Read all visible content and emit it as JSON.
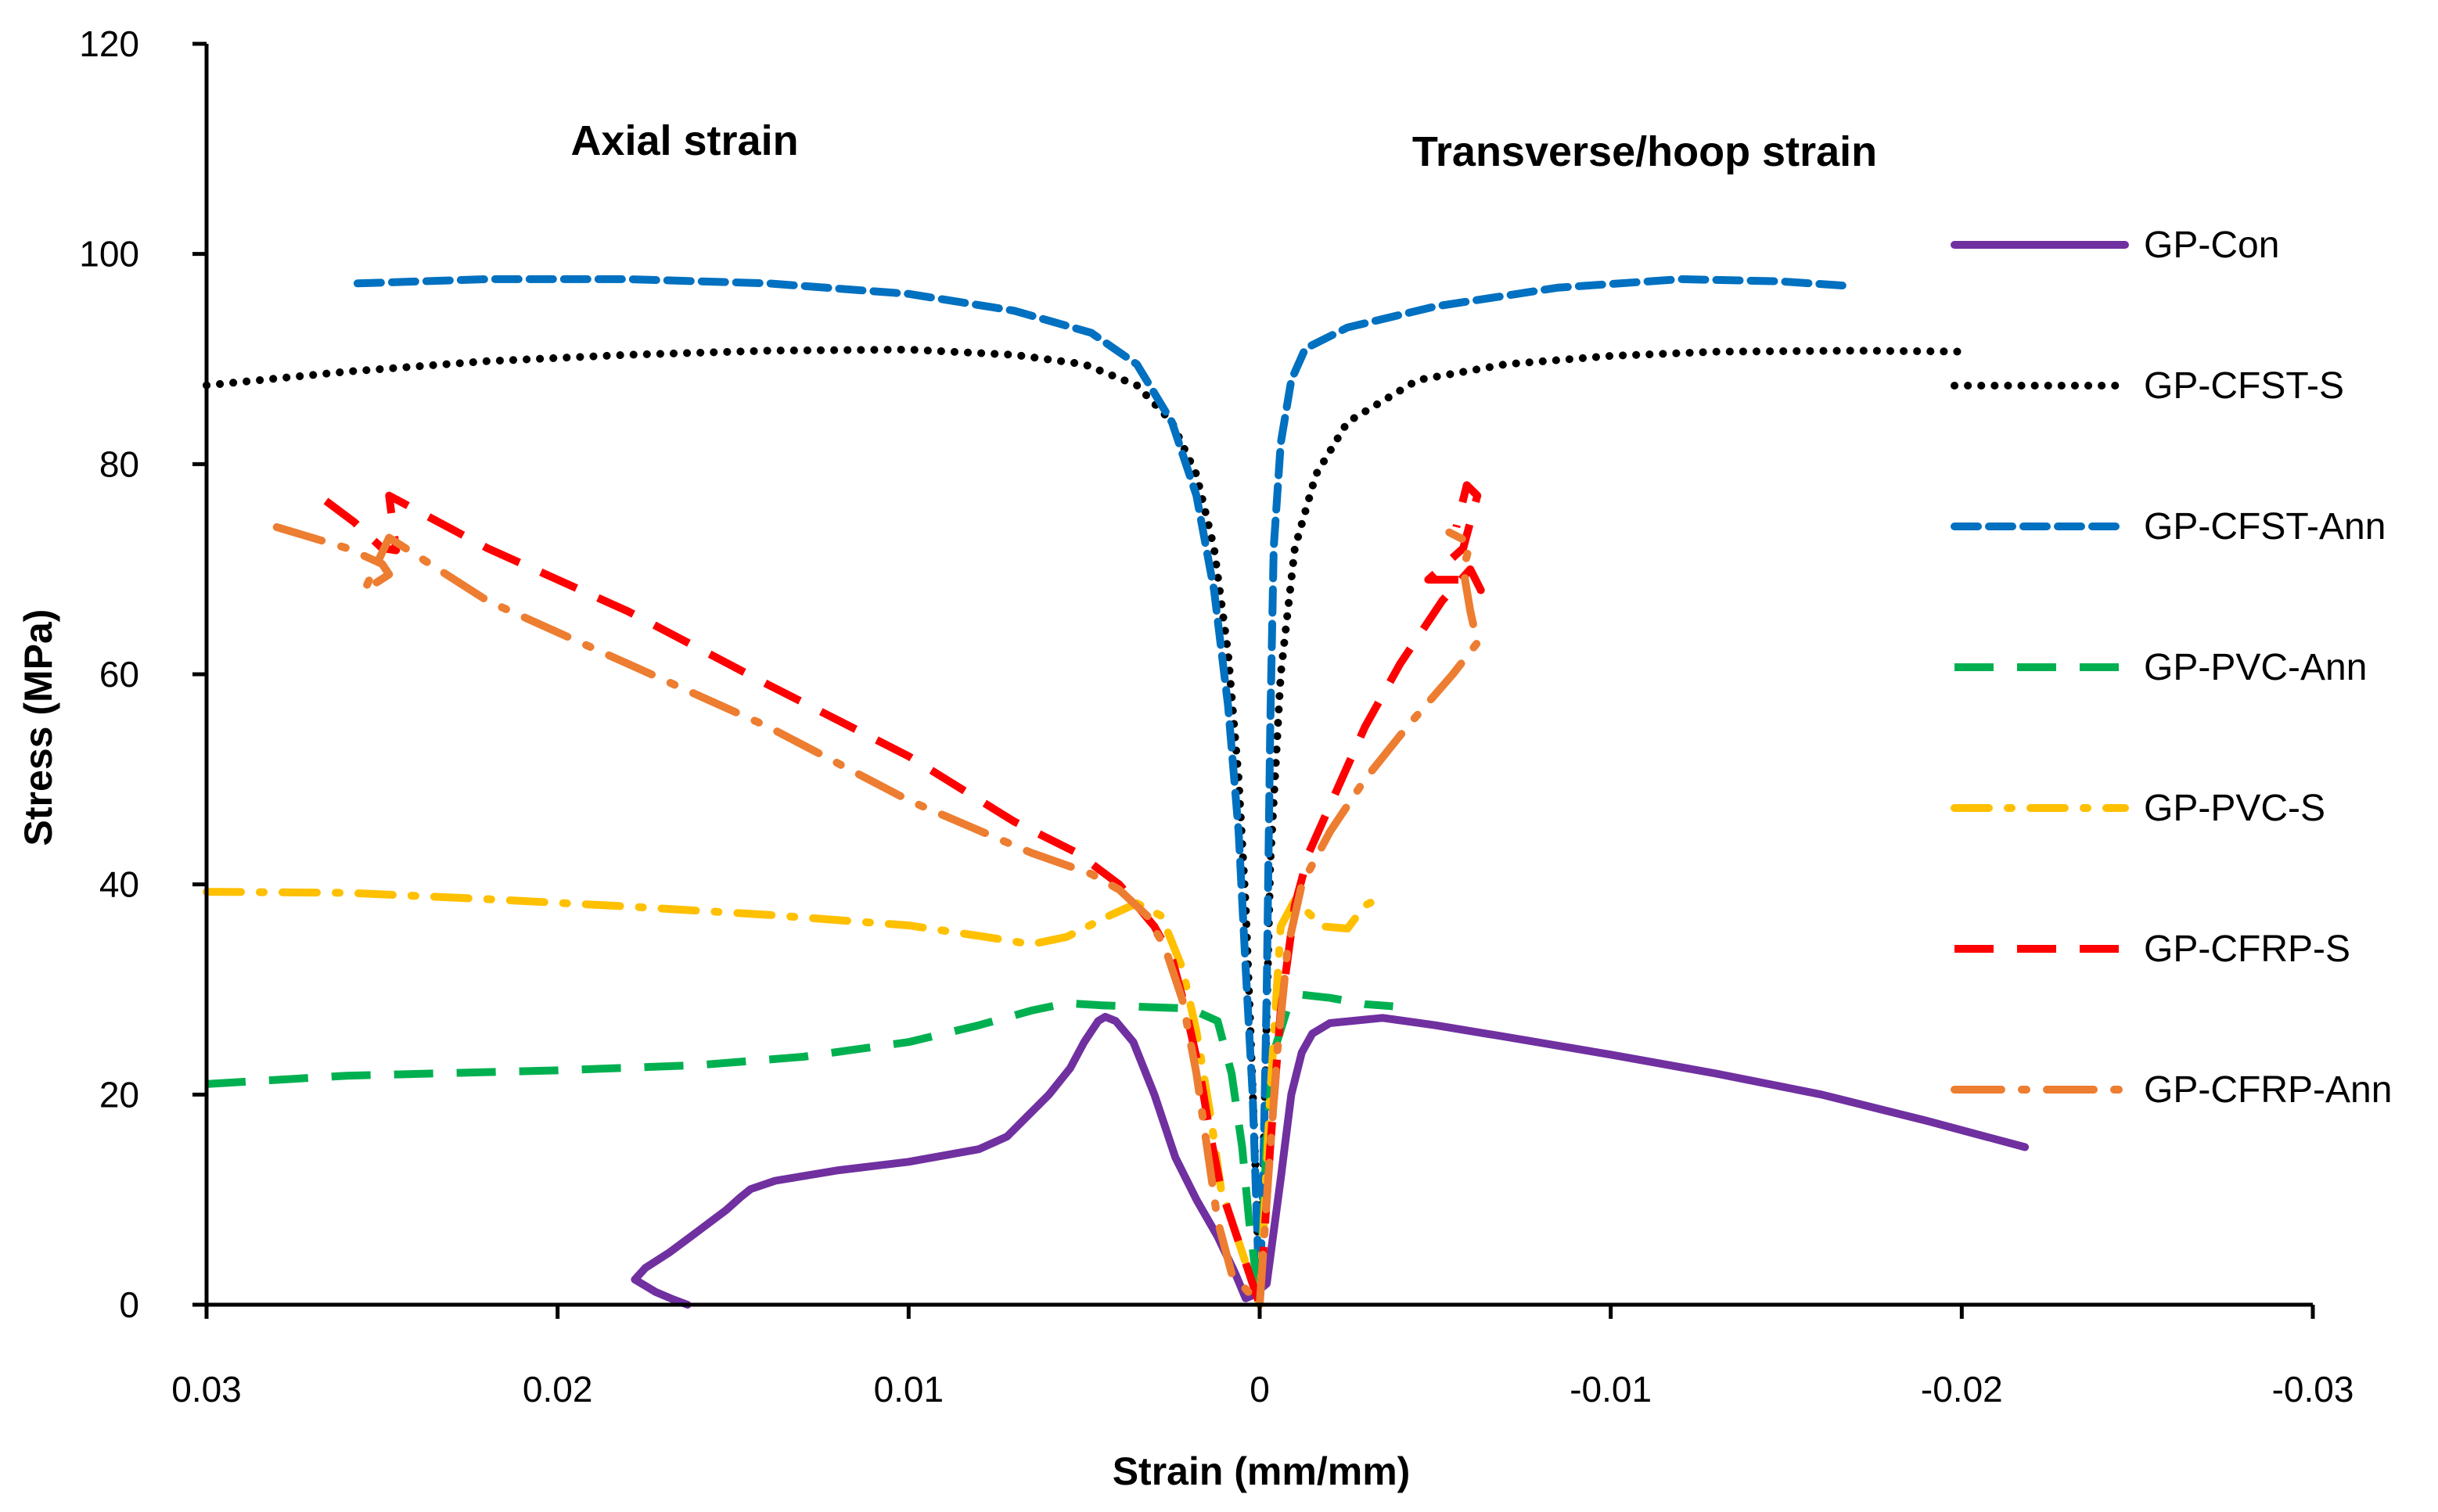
{
  "chart_data": {
    "type": "line",
    "title": "",
    "xlabel": "Strain (mm/mm)",
    "ylabel": "Stress (MPa)",
    "xlim": [
      0.03,
      -0.03
    ],
    "ylim": [
      0,
      120
    ],
    "x_ticks": [
      "0.03",
      "0.02",
      "0.01",
      "0",
      "-0.01",
      "-0.02",
      "-0.03"
    ],
    "y_ticks": [
      "0",
      "20",
      "40",
      "60",
      "80",
      "100",
      "120"
    ],
    "x_tick_values": [
      0.03,
      0.02,
      0.01,
      0,
      -0.01,
      -0.02,
      -0.03
    ],
    "y_tick_values": [
      0,
      20,
      40,
      60,
      80,
      100,
      120
    ],
    "grid": false,
    "legend_position": "right",
    "annotations": [
      {
        "text": "Axial strain",
        "x": 0.017,
        "y": 110
      },
      {
        "text": "Transverse/hoop strain",
        "x": -0.0101,
        "y": 109
      }
    ],
    "series": [
      {
        "name": "GP-Con",
        "color": "#7030A0",
        "dash": "solid",
        "points": [
          [
            0.0163,
            0
          ],
          [
            0.0167,
            0.5
          ],
          [
            0.0172,
            1.2
          ],
          [
            0.0178,
            2.4
          ],
          [
            0.0175,
            3.5
          ],
          [
            0.0168,
            5
          ],
          [
            0.0158,
            7.5
          ],
          [
            0.0152,
            9
          ],
          [
            0.0148,
            10.2
          ],
          [
            0.0145,
            11
          ],
          [
            0.0138,
            11.8
          ],
          [
            0.012,
            12.8
          ],
          [
            0.01,
            13.6
          ],
          [
            0.008,
            14.8
          ],
          [
            0.0072,
            16
          ],
          [
            0.0066,
            18
          ],
          [
            0.006,
            20
          ],
          [
            0.0054,
            22.5
          ],
          [
            0.005,
            25
          ],
          [
            0.0046,
            27
          ],
          [
            0.0044,
            27.4
          ],
          [
            0.0041,
            27
          ],
          [
            0.0036,
            25
          ],
          [
            0.003,
            20
          ],
          [
            0.0024,
            14
          ],
          [
            0.0018,
            10
          ],
          [
            0.0012,
            6.5
          ],
          [
            0.0007,
            3
          ],
          [
            0.0004,
            0.6
          ],
          [
            0.0002,
            0.9
          ],
          [
            -0.0002,
            2
          ],
          [
            -0.0006,
            12
          ],
          [
            -0.0009,
            20
          ],
          [
            -0.0012,
            24
          ],
          [
            -0.0015,
            25.8
          ],
          [
            -0.002,
            26.8
          ],
          [
            -0.0035,
            27.3
          ],
          [
            -0.005,
            26.6
          ],
          [
            -0.007,
            25.5
          ],
          [
            -0.01,
            23.8
          ],
          [
            -0.013,
            22
          ],
          [
            -0.016,
            20
          ],
          [
            -0.019,
            17.5
          ],
          [
            -0.0218,
            15
          ]
        ]
      },
      {
        "name": "GP-CFST-S",
        "color": "#000000",
        "dash": "dotted",
        "points": [
          [
            0.03,
            87.5
          ],
          [
            0.026,
            88.8
          ],
          [
            0.022,
            89.8
          ],
          [
            0.018,
            90.4
          ],
          [
            0.014,
            90.8
          ],
          [
            0.01,
            90.9
          ],
          [
            0.007,
            90.4
          ],
          [
            0.005,
            89.5
          ],
          [
            0.0035,
            87.5
          ],
          [
            0.0025,
            84
          ],
          [
            0.0018,
            79
          ],
          [
            0.0013,
            72
          ],
          [
            0.0009,
            62
          ],
          [
            0.0006,
            50
          ],
          [
            0.0004,
            38
          ],
          [
            0.00025,
            25
          ],
          [
            0.00015,
            16
          ],
          [
            0,
            0
          ],
          [
            -0.00015,
            20
          ],
          [
            -0.0003,
            42
          ],
          [
            -0.0006,
            60
          ],
          [
            -0.001,
            72
          ],
          [
            -0.0016,
            79
          ],
          [
            -0.0025,
            84
          ],
          [
            -0.0045,
            88
          ],
          [
            -0.007,
            89.5
          ],
          [
            -0.01,
            90.3
          ],
          [
            -0.013,
            90.7
          ],
          [
            -0.017,
            90.8
          ],
          [
            -0.0202,
            90.7
          ]
        ]
      },
      {
        "name": "GP-CFST-Ann",
        "color": "#0070C0",
        "dash": "dashed",
        "points": [
          [
            0.0257,
            97.2
          ],
          [
            0.022,
            97.6
          ],
          [
            0.018,
            97.6
          ],
          [
            0.014,
            97.2
          ],
          [
            0.01,
            96.2
          ],
          [
            0.007,
            94.6
          ],
          [
            0.0048,
            92.5
          ],
          [
            0.0035,
            89.5
          ],
          [
            0.0025,
            84
          ],
          [
            0.0018,
            77
          ],
          [
            0.0013,
            68
          ],
          [
            0.0009,
            57
          ],
          [
            0.0006,
            45
          ],
          [
            0.0004,
            32
          ],
          [
            0.0002,
            20
          ],
          [
            0,
            0
          ],
          [
            -0.0001,
            12
          ],
          [
            -0.0002,
            30
          ],
          [
            -0.0003,
            55
          ],
          [
            -0.0004,
            72
          ],
          [
            -0.0006,
            82
          ],
          [
            -0.0009,
            88
          ],
          [
            -0.0013,
            91
          ],
          [
            -0.0025,
            93
          ],
          [
            -0.005,
            95
          ],
          [
            -0.0085,
            96.8
          ],
          [
            -0.012,
            97.6
          ],
          [
            -0.0148,
            97.4
          ],
          [
            -0.0166,
            97
          ]
        ]
      },
      {
        "name": "GP-PVC-Ann",
        "color": "#00B050",
        "dash": "longdash",
        "points": [
          [
            0.03,
            21
          ],
          [
            0.026,
            21.8
          ],
          [
            0.02,
            22.3
          ],
          [
            0.016,
            22.8
          ],
          [
            0.013,
            23.6
          ],
          [
            0.01,
            25
          ],
          [
            0.008,
            26.6
          ],
          [
            0.0065,
            28
          ],
          [
            0.0055,
            28.7
          ],
          [
            0.0045,
            28.5
          ],
          [
            0.003,
            28.3
          ],
          [
            0.002,
            28.2
          ],
          [
            0.0012,
            27
          ],
          [
            0.0008,
            22
          ],
          [
            0.0005,
            15
          ],
          [
            0.0003,
            8
          ],
          [
            0,
            0
          ],
          [
            -0.0002,
            16
          ],
          [
            -0.0004,
            24
          ],
          [
            -0.0008,
            28.3
          ],
          [
            -0.0012,
            29.5
          ],
          [
            -0.002,
            29.2
          ],
          [
            -0.003,
            28.6
          ],
          [
            -0.0038,
            28.4
          ]
        ]
      },
      {
        "name": "GP-PVC-S",
        "color": "#FFC000",
        "dash": "dashdot",
        "points": [
          [
            0.03,
            39.3
          ],
          [
            0.026,
            39.2
          ],
          [
            0.022,
            38.6
          ],
          [
            0.018,
            37.9
          ],
          [
            0.014,
            37.1
          ],
          [
            0.01,
            36.1
          ],
          [
            0.0078,
            35
          ],
          [
            0.0065,
            34.3
          ],
          [
            0.0055,
            35
          ],
          [
            0.0043,
            37
          ],
          [
            0.0035,
            38.2
          ],
          [
            0.0028,
            37
          ],
          [
            0.0022,
            32
          ],
          [
            0.0018,
            26
          ],
          [
            0.0014,
            18
          ],
          [
            0.0011,
            11
          ],
          [
            0,
            0
          ],
          [
            -0.0003,
            20
          ],
          [
            -0.0006,
            36
          ],
          [
            -0.001,
            38.5
          ],
          [
            -0.0018,
            36
          ],
          [
            -0.0025,
            35.8
          ],
          [
            -0.003,
            38
          ],
          [
            -0.0036,
            39
          ]
        ]
      },
      {
        "name": "GP-CFRP-S",
        "color": "#FF0000",
        "dash": "longdash",
        "points": [
          [
            0.0266,
            76.5
          ],
          [
            0.0258,
            74.5
          ],
          [
            0.025,
            72
          ],
          [
            0.0246,
            71.8
          ],
          [
            0.0248,
            77
          ],
          [
            0.022,
            72
          ],
          [
            0.018,
            66
          ],
          [
            0.014,
            59
          ],
          [
            0.01,
            52.2
          ],
          [
            0.007,
            46
          ],
          [
            0.0052,
            43
          ],
          [
            0.004,
            40
          ],
          [
            0.003,
            36
          ],
          [
            0.0025,
            33
          ],
          [
            0.0021,
            28
          ],
          [
            0.0017,
            22
          ],
          [
            0.0014,
            16
          ],
          [
            0.0011,
            11
          ],
          [
            0,
            0
          ],
          [
            -0.0003,
            15
          ],
          [
            -0.0006,
            28
          ],
          [
            -0.001,
            38
          ],
          [
            -0.0014,
            43
          ],
          [
            -0.0022,
            49
          ],
          [
            -0.003,
            55
          ],
          [
            -0.004,
            61
          ],
          [
            -0.0052,
            67
          ],
          [
            -0.006,
            70
          ],
          [
            -0.0063,
            68
          ],
          [
            -0.0058,
            69
          ],
          [
            -0.0048,
            69
          ],
          [
            -0.0058,
            72
          ],
          [
            -0.0062,
            77
          ],
          [
            -0.0059,
            78
          ],
          [
            -0.0056,
            74
          ]
        ]
      },
      {
        "name": "GP-CFRP-Ann",
        "color": "#ED7D31",
        "dash": "dashdotdot",
        "points": [
          [
            0.028,
            74
          ],
          [
            0.026,
            72
          ],
          [
            0.025,
            70.5
          ],
          [
            0.0248,
            69.5
          ],
          [
            0.0255,
            68
          ],
          [
            0.0248,
            73
          ],
          [
            0.022,
            67
          ],
          [
            0.018,
            61
          ],
          [
            0.014,
            55
          ],
          [
            0.01,
            48
          ],
          [
            0.0065,
            43
          ],
          [
            0.0048,
            41
          ],
          [
            0.004,
            39.5
          ],
          [
            0.0032,
            37
          ],
          [
            0.0027,
            34
          ],
          [
            0.0022,
            29
          ],
          [
            0.0018,
            22
          ],
          [
            0.0015,
            15
          ],
          [
            0.0012,
            8
          ],
          [
            0.0008,
            3
          ],
          [
            0,
            0
          ],
          [
            -0.0002,
            10
          ],
          [
            -0.0005,
            24
          ],
          [
            -0.0008,
            34
          ],
          [
            -0.0012,
            40
          ],
          [
            -0.002,
            45
          ],
          [
            -0.003,
            50
          ],
          [
            -0.0042,
            55
          ],
          [
            -0.0055,
            60
          ],
          [
            -0.0062,
            63
          ],
          [
            -0.006,
            66
          ],
          [
            -0.0058,
            70
          ],
          [
            -0.006,
            72.5
          ],
          [
            -0.0057,
            73
          ],
          [
            -0.0054,
            73.5
          ]
        ]
      }
    ]
  }
}
